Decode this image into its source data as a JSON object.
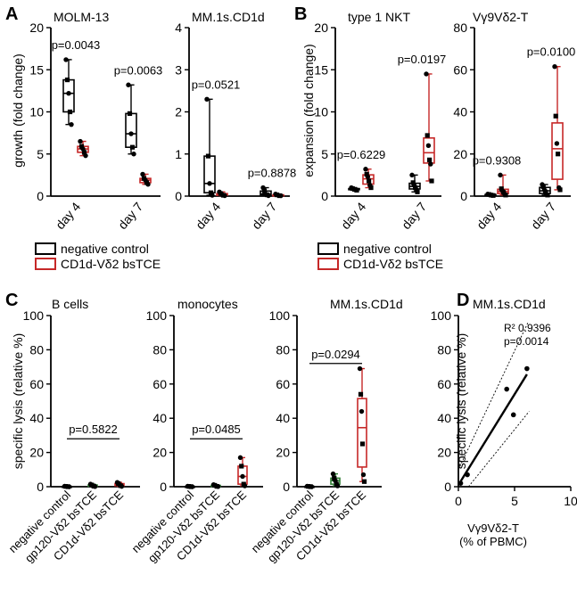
{
  "colors": {
    "control": "#000000",
    "bstce": "#c62828",
    "gp120": "#2e7d32",
    "axis": "#000000"
  },
  "panel_letters": [
    "A",
    "B",
    "C",
    "D"
  ],
  "legend": {
    "items": [
      "negative control",
      "CD1d-Vδ2 bsTCE"
    ]
  },
  "chart_data": [
    {
      "id": "A1",
      "type": "box",
      "panel": "A",
      "title": "MOLM-13",
      "ylabel": "growth (fold change)",
      "ylim": [
        0,
        20
      ],
      "yticks": [
        0,
        5,
        10,
        15,
        20
      ],
      "categories": [
        "day 4",
        "day 7"
      ],
      "series": [
        {
          "name": "negative control",
          "color": "control",
          "values": [
            [
              16.2,
              13.8,
              12.2,
              10.0,
              8.5
            ],
            [
              13.2,
              9.8,
              7.4,
              5.8,
              5.0
            ]
          ]
        },
        {
          "name": "CD1d-Vδ2 bsTCE",
          "color": "bstce",
          "values": [
            [
              6.5,
              5.9,
              5.6,
              5.2,
              4.8
            ],
            [
              2.6,
              2.1,
              1.9,
              1.6,
              1.4
            ]
          ]
        }
      ],
      "pvalues": [
        "p=0.0043",
        "p=0.0063"
      ]
    },
    {
      "id": "A2",
      "type": "box",
      "panel": "A",
      "title": "MM.1s.CD1d",
      "ylabel": "",
      "ylim": [
        0,
        4
      ],
      "yticks": [
        0,
        1,
        2,
        3,
        4
      ],
      "categories": [
        "day 4",
        "day 7"
      ],
      "series": [
        {
          "name": "negative control",
          "color": "control",
          "values": [
            [
              2.3,
              0.95,
              0.3,
              0.08,
              0.02
            ],
            [
              0.2,
              0.12,
              0.05,
              0.03,
              0.01
            ]
          ]
        },
        {
          "name": "CD1d-Vδ2 bsTCE",
          "color": "bstce",
          "values": [
            [
              0.1,
              0.06,
              0.04,
              0.02,
              0.01
            ],
            [
              0.05,
              0.03,
              0.02,
              0.01,
              0.01
            ]
          ]
        }
      ],
      "pvalues": [
        "p=0.0521",
        "p=0.8878"
      ]
    },
    {
      "id": "B1",
      "type": "box",
      "panel": "B",
      "title": "type 1 NKT",
      "ylabel": "expansion (fold change)",
      "ylim": [
        0,
        20
      ],
      "yticks": [
        0,
        5,
        10,
        15,
        20
      ],
      "categories": [
        "day 4",
        "day 7"
      ],
      "series": [
        {
          "name": "negative control",
          "color": "control",
          "values": [
            [
              1.0,
              0.9,
              0.85,
              0.8,
              0.75,
              0.7
            ],
            [
              2.5,
              1.6,
              1.3,
              1.0,
              0.8,
              0.5
            ]
          ]
        },
        {
          "name": "CD1d-Vδ2 bsTCE",
          "color": "bstce",
          "values": [
            [
              3.2,
              2.6,
              2.3,
              1.8,
              1.3,
              1.0
            ],
            [
              14.5,
              7.2,
              6.0,
              4.3,
              3.8,
              1.8
            ]
          ]
        }
      ],
      "pvalues": [
        "p=0.6229",
        "p=0.0197"
      ]
    },
    {
      "id": "B2",
      "type": "box",
      "panel": "B",
      "title": "Vγ9Vδ2-T",
      "ylabel": "",
      "ylim": [
        0,
        80
      ],
      "yticks": [
        0,
        20,
        40,
        60,
        80
      ],
      "categories": [
        "day 4",
        "day 7"
      ],
      "series": [
        {
          "name": "negative control",
          "color": "control",
          "values": [
            [
              1.0,
              0.8,
              0.6,
              0.5,
              0.4,
              0.3
            ],
            [
              5.5,
              4.5,
              3.0,
              2.0,
              1.0,
              0.5
            ]
          ]
        },
        {
          "name": "CD1d-Vδ2 bsTCE",
          "color": "bstce",
          "values": [
            [
              10.0,
              3.5,
              2.5,
              1.8,
              1.0,
              0.5
            ],
            [
              61.5,
              38.0,
              25.0,
              20.0,
              4.0,
              3.0
            ]
          ]
        }
      ],
      "pvalues": [
        "p=0.9308",
        "p=0.0100"
      ]
    },
    {
      "id": "C1",
      "type": "box",
      "panel": "C",
      "title": "B cells",
      "ylabel": "specific lysis (relative %)",
      "ylim": [
        0,
        100
      ],
      "yticks": [
        0,
        20,
        40,
        60,
        80,
        100
      ],
      "categories": [
        "negative control",
        "gp120-Vδ2 bsTCE",
        "CD1d-Vδ2 bsTCE"
      ],
      "series": [
        {
          "name": "negative control",
          "color": "control",
          "values": [
            [
              0.3,
              0.2,
              0.1,
              0.0,
              0.0
            ]
          ]
        },
        {
          "name": "gp120-Vδ2 bsTCE",
          "color": "gp120",
          "values": [
            [
              1.5,
              1.0,
              0.6,
              0.3,
              0.1
            ]
          ]
        },
        {
          "name": "CD1d-Vδ2 bsTCE",
          "color": "bstce",
          "values": [
            [
              2.5,
              1.8,
              1.2,
              0.6,
              0.2
            ]
          ]
        }
      ],
      "bracket": {
        "pvalue": "p=0.5822",
        "value": 28
      }
    },
    {
      "id": "C2",
      "type": "box",
      "panel": "C",
      "title": "monocytes",
      "ylabel": "",
      "ylim": [
        0,
        100
      ],
      "yticks": [
        0,
        20,
        40,
        60,
        80,
        100
      ],
      "categories": [
        "negative control",
        "gp120-Vδ2 bsTCE",
        "CD1d-Vδ2 bsTCE"
      ],
      "series": [
        {
          "name": "negative control",
          "color": "control",
          "values": [
            [
              0.3,
              0.2,
              0.1,
              0.0,
              0.0
            ]
          ]
        },
        {
          "name": "gp120-Vδ2 bsTCE",
          "color": "gp120",
          "values": [
            [
              1.2,
              0.8,
              0.5,
              0.2,
              0.1
            ]
          ]
        },
        {
          "name": "CD1d-Vδ2 bsTCE",
          "color": "bstce",
          "values": [
            [
              17.0,
              12.0,
              6.0,
              1.5,
              0.5
            ]
          ]
        }
      ],
      "bracket": {
        "pvalue": "p=0.0485",
        "value": 28
      }
    },
    {
      "id": "C3",
      "type": "box",
      "panel": "C",
      "title": "MM.1s.CD1d",
      "ylabel": "",
      "ylim": [
        0,
        100
      ],
      "yticks": [
        0,
        20,
        40,
        60,
        80,
        100
      ],
      "categories": [
        "negative control",
        "gp120-Vδ2 bsTCE",
        "CD1d-Vδ2 bsTCE"
      ],
      "series": [
        {
          "name": "negative control",
          "color": "control",
          "values": [
            [
              0.3,
              0.2,
              0.1,
              0.0,
              0.0
            ]
          ]
        },
        {
          "name": "gp120-Vδ2 bsTCE",
          "color": "gp120",
          "values": [
            [
              7.5,
              5.0,
              3.5,
              1.5,
              0.5
            ]
          ]
        },
        {
          "name": "CD1d-Vδ2 bsTCE",
          "color": "bstce",
          "values": [
            [
              69.0,
              54.0,
              44.0,
              25.0,
              7.0,
              3.0
            ]
          ]
        }
      ],
      "bracket": {
        "pvalue": "p=0.0294",
        "value": 72
      }
    },
    {
      "id": "D",
      "type": "scatter",
      "panel": "D",
      "title": "MM.1s.CD1d",
      "xlabel": "Vγ9Vδ2-T",
      "xlabel2": "(% of PBMC)",
      "ylabel": "specific lysis (relative %)",
      "xlim": [
        0,
        10
      ],
      "ylim": [
        0,
        100
      ],
      "xticks": [
        0,
        5,
        10
      ],
      "yticks": [
        0,
        20,
        40,
        60,
        80,
        100
      ],
      "x": [
        0.2,
        0.8,
        4.3,
        4.9,
        6.1
      ],
      "y": [
        2,
        7,
        57,
        42,
        69
      ],
      "fit": {
        "slope": 10.6,
        "intercept": 1.0,
        "x_range": [
          0.2,
          6.1
        ]
      },
      "r2": "R² 0.9396",
      "pvalue": "p=0.0014"
    }
  ]
}
